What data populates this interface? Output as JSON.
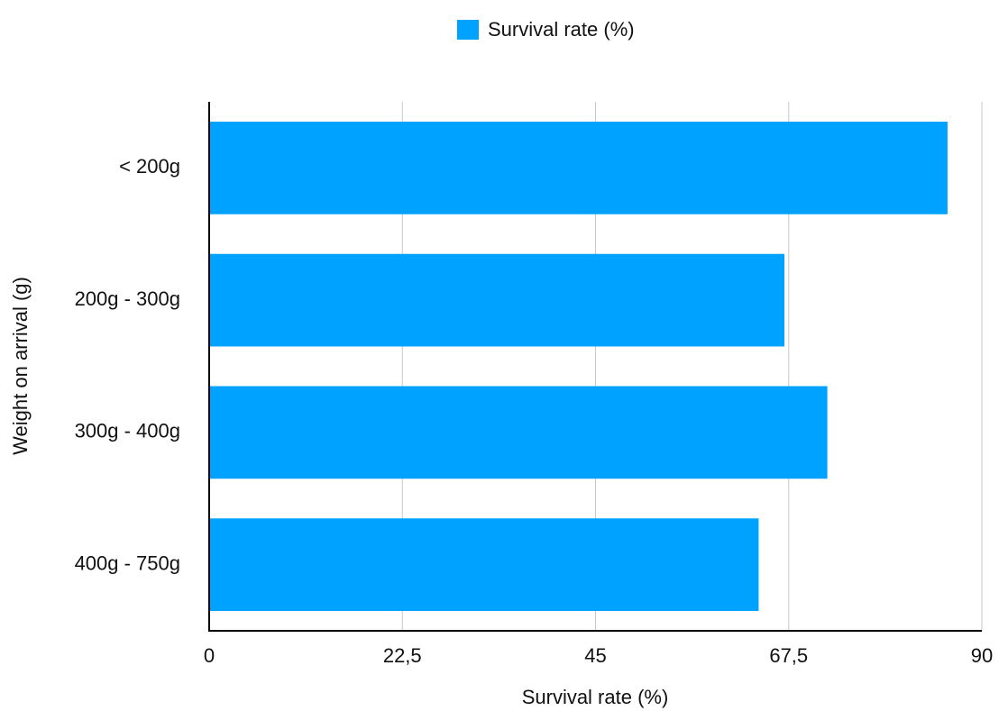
{
  "chart_data": {
    "type": "hbar",
    "x_label": "Survival rate (%)",
    "y_label": "Weight on arrival (g)",
    "categories": [
      "< 200g",
      "200g - 300g",
      "300g - 400g",
      "400g - 750g"
    ],
    "series": [
      {
        "name": "Survival rate (%)",
        "color": "#00a2ff",
        "values": [
          86,
          67,
          72,
          64
        ]
      }
    ],
    "xlim": [
      0,
      90
    ],
    "xticks": [
      0,
      {
        "value": 22.5,
        "label": "22,5"
      },
      45,
      {
        "value": 67.5,
        "label": "67,5"
      },
      90
    ],
    "grid": true,
    "legend": "top"
  }
}
